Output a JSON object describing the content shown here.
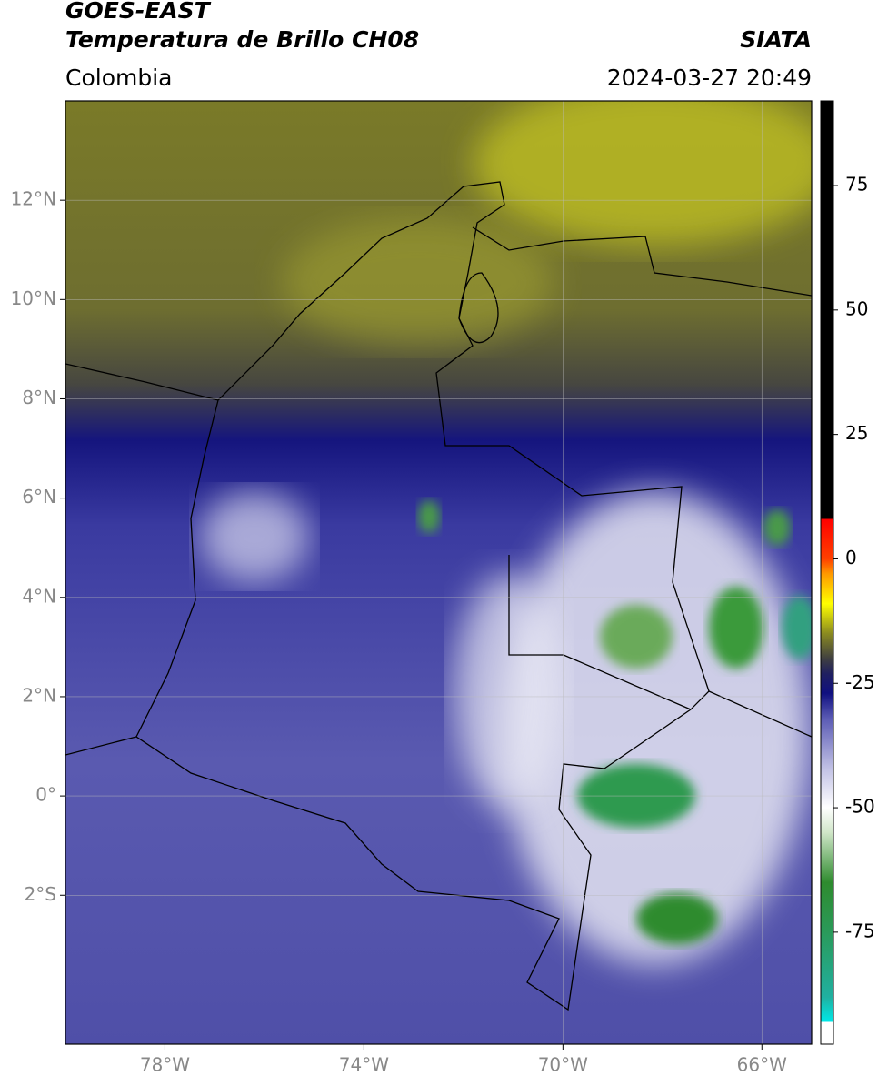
{
  "chart_data": {
    "type": "map",
    "title": "GOES-EAST",
    "subtitle": "Temperatura de Brillo CH08",
    "source": "SIATA",
    "region": "Colombia",
    "datetime": "2024-03-27 20:49",
    "xlim": [
      -80,
      -65
    ],
    "ylim": [
      -5,
      14
    ],
    "xticks": [
      {
        "value": -78,
        "label": "78°W"
      },
      {
        "value": -74,
        "label": "74°W"
      },
      {
        "value": -70,
        "label": "70°W"
      },
      {
        "value": -66,
        "label": "66°W"
      }
    ],
    "yticks": [
      {
        "value": 12,
        "label": "12°N"
      },
      {
        "value": 10,
        "label": "10°N"
      },
      {
        "value": 8,
        "label": "8°N"
      },
      {
        "value": 6,
        "label": "6°N"
      },
      {
        "value": 4,
        "label": "4°N"
      },
      {
        "value": 2,
        "label": "2°N"
      },
      {
        "value": 0,
        "label": "0°"
      },
      {
        "value": -2,
        "label": "2°S"
      }
    ],
    "grid": true,
    "clim": [
      -97.5,
      92
    ],
    "cticks": [
      75,
      50,
      25,
      0,
      -25,
      -50,
      -75
    ],
    "colormap": [
      {
        "value": -97.5,
        "color": "#ffffff"
      },
      {
        "value": -93,
        "color": "#ffffff"
      },
      {
        "value": -93,
        "color": "#00e8e8"
      },
      {
        "value": -88,
        "color": "#20b0a0"
      },
      {
        "value": -75,
        "color": "#2a9a5a"
      },
      {
        "value": -65,
        "color": "#2e8b2e"
      },
      {
        "value": -55,
        "color": "#d0e6c8"
      },
      {
        "value": -50,
        "color": "#ffffff"
      },
      {
        "value": -42,
        "color": "#c0c0e4"
      },
      {
        "value": -32,
        "color": "#5a5ab4"
      },
      {
        "value": -27,
        "color": "#101080"
      },
      {
        "value": -23,
        "color": "#202060"
      },
      {
        "value": -20,
        "color": "#404040"
      },
      {
        "value": -15,
        "color": "#8a8a20"
      },
      {
        "value": -9,
        "color": "#ffff00"
      },
      {
        "value": -3,
        "color": "#ff9900"
      },
      {
        "value": 0,
        "color": "#ff4000"
      },
      {
        "value": 8,
        "color": "#ff0000"
      },
      {
        "value": 8,
        "color": "#000000"
      },
      {
        "value": 92,
        "color": "#000000"
      }
    ]
  }
}
